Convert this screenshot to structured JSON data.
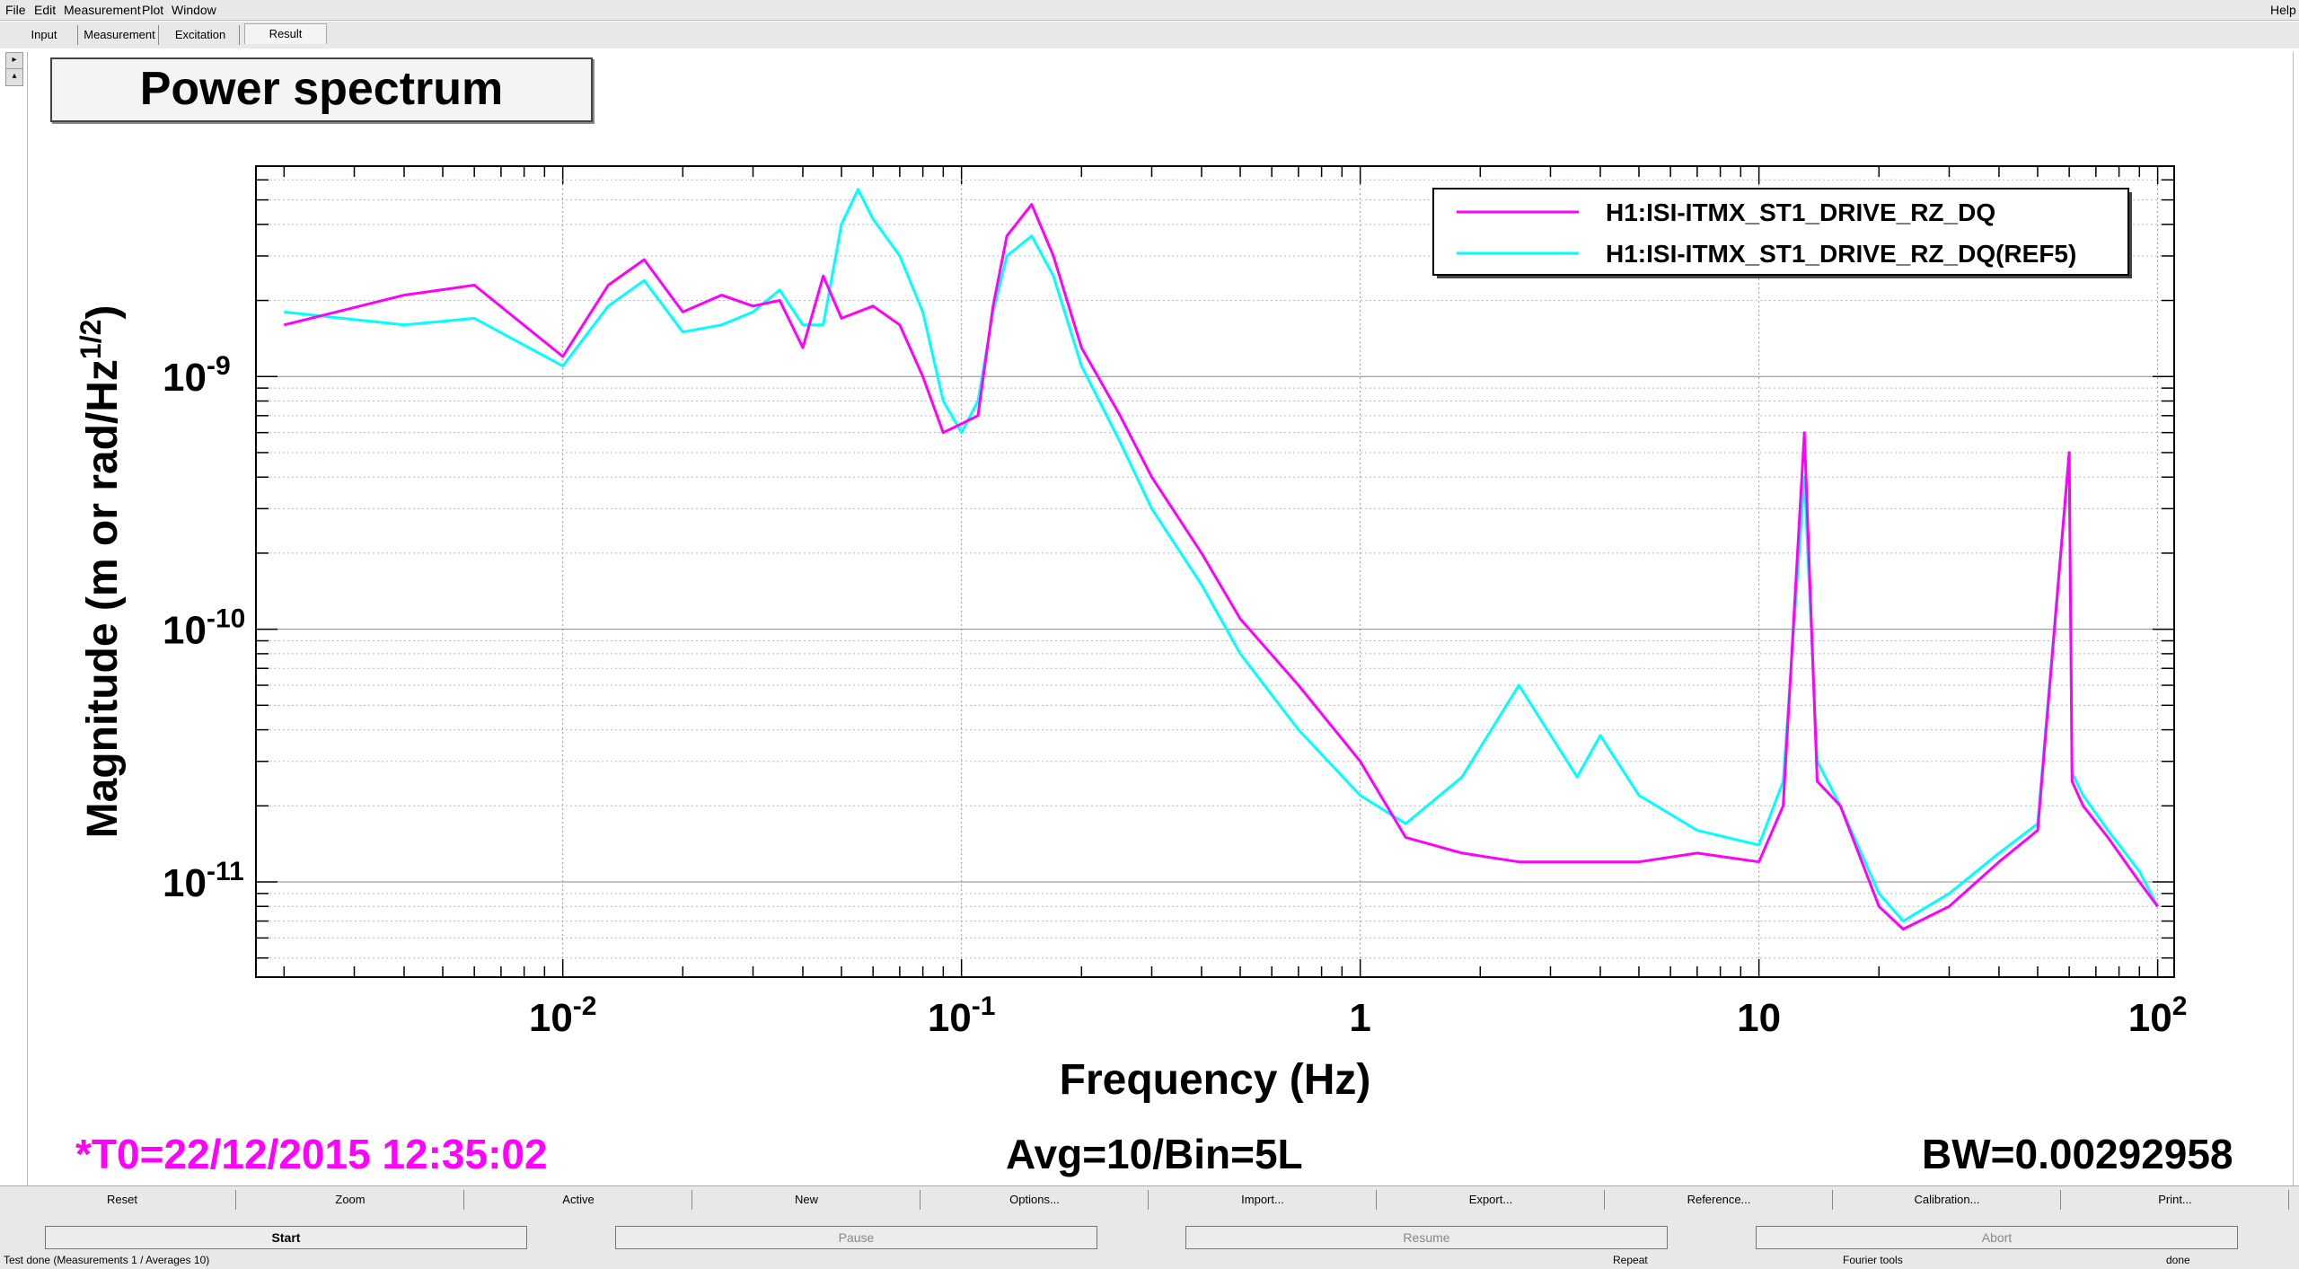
{
  "menu": {
    "items": [
      "File",
      "Edit",
      "Measurement",
      "Plot",
      "Window"
    ],
    "help": "Help"
  },
  "tabs": [
    "Input",
    "Measurement",
    "Excitation",
    "Result"
  ],
  "active_tab": "Result",
  "plot_title": "Power spectrum",
  "stats": {
    "t0": "*T0=22/12/2015 12:35:02",
    "avg": "Avg=10/Bin=5L",
    "bw": "BW=0.00292958"
  },
  "colors": {
    "series1": "#ff00ff",
    "series2": "#00ffff",
    "t0_text": "#ff00ff"
  },
  "chart_data": {
    "type": "line",
    "title": "Power spectrum",
    "xlabel": "Frequency (Hz)",
    "ylabel_main": "Magnitude (m or rad/Hz",
    "ylabel_sup": "1/2",
    "ylabel_close": ")",
    "x_scale": "log",
    "y_scale": "log",
    "xlim": [
      0.0017,
      110
    ],
    "ylim": [
      4.2e-12,
      6.8e-09
    ],
    "x_ticks": [
      {
        "value": 0.01,
        "base": "10",
        "exp": "-2"
      },
      {
        "value": 0.1,
        "base": "10",
        "exp": "-1"
      },
      {
        "value": 1,
        "base": "1",
        "exp": ""
      },
      {
        "value": 10,
        "base": "10",
        "exp": ""
      },
      {
        "value": 100,
        "base": "10",
        "exp": "2"
      }
    ],
    "y_ticks": [
      {
        "value": 1e-11,
        "base": "10",
        "exp": "-11"
      },
      {
        "value": 1e-10,
        "base": "10",
        "exp": "-10"
      },
      {
        "value": 1e-09,
        "base": "10",
        "exp": "-9"
      }
    ],
    "grid": true,
    "legend_position": "top-right",
    "series": [
      {
        "name": "H1:ISI-ITMX_ST1_DRIVE_RZ_DQ",
        "color": "#ff00ff",
        "x": [
          0.002,
          0.004,
          0.006,
          0.01,
          0.013,
          0.016,
          0.02,
          0.025,
          0.03,
          0.035,
          0.04,
          0.045,
          0.05,
          0.06,
          0.07,
          0.08,
          0.09,
          0.1,
          0.11,
          0.12,
          0.13,
          0.15,
          0.17,
          0.2,
          0.25,
          0.3,
          0.4,
          0.5,
          0.7,
          1.0,
          1.3,
          1.8,
          2.5,
          3.5,
          5.0,
          7.0,
          10.0,
          11.5,
          13.0,
          14.0,
          16.0,
          20.0,
          23.0,
          30.0,
          40.0,
          50.0,
          60.0,
          61.0,
          65.0,
          75.0,
          90.0,
          100.0
        ],
        "y": [
          1.6e-09,
          2.1e-09,
          2.3e-09,
          1.2e-09,
          2.3e-09,
          2.9e-09,
          1.8e-09,
          2.1e-09,
          1.9e-09,
          2e-09,
          1.3e-09,
          2.5e-09,
          1.7e-09,
          1.9e-09,
          1.6e-09,
          1e-09,
          6e-10,
          6.5e-10,
          7e-10,
          1.9e-09,
          3.6e-09,
          4.8e-09,
          3e-09,
          1.3e-09,
          7e-10,
          4e-10,
          2e-10,
          1.1e-10,
          6e-11,
          3e-11,
          1.5e-11,
          1.3e-11,
          1.2e-11,
          1.2e-11,
          1.2e-11,
          1.3e-11,
          1.2e-11,
          2e-11,
          6e-10,
          2.5e-11,
          2e-11,
          8e-12,
          6.5e-12,
          8e-12,
          1.2e-11,
          1.6e-11,
          5e-10,
          2.5e-11,
          2e-11,
          1.5e-11,
          1e-11,
          8e-12
        ]
      },
      {
        "name": "H1:ISI-ITMX_ST1_DRIVE_RZ_DQ(REF5)",
        "color": "#00ffff",
        "x": [
          0.002,
          0.004,
          0.006,
          0.01,
          0.013,
          0.016,
          0.02,
          0.025,
          0.03,
          0.035,
          0.04,
          0.045,
          0.05,
          0.055,
          0.06,
          0.07,
          0.08,
          0.09,
          0.1,
          0.11,
          0.12,
          0.13,
          0.15,
          0.17,
          0.2,
          0.25,
          0.3,
          0.4,
          0.5,
          0.7,
          1.0,
          1.3,
          1.8,
          2.5,
          3.5,
          4.0,
          5.0,
          7.0,
          10.0,
          11.5,
          13.0,
          14.0,
          16.0,
          20.0,
          23.0,
          30.0,
          40.0,
          50.0,
          60.0,
          61.0,
          65.0,
          75.0,
          90.0,
          100.0
        ],
        "y": [
          1.8e-09,
          1.6e-09,
          1.7e-09,
          1.1e-09,
          1.9e-09,
          2.4e-09,
          1.5e-09,
          1.6e-09,
          1.8e-09,
          2.2e-09,
          1.6e-09,
          1.6e-09,
          4e-09,
          5.5e-09,
          4.2e-09,
          3e-09,
          1.8e-09,
          8e-10,
          6e-10,
          8e-10,
          1.8e-09,
          3e-09,
          3.6e-09,
          2.5e-09,
          1.1e-09,
          5.5e-10,
          3e-10,
          1.5e-10,
          8e-11,
          4e-11,
          2.2e-11,
          1.7e-11,
          2.6e-11,
          6e-11,
          2.6e-11,
          3.8e-11,
          2.2e-11,
          1.6e-11,
          1.4e-11,
          2.5e-11,
          4e-10,
          3e-11,
          2e-11,
          9e-12,
          7e-12,
          9e-12,
          1.3e-11,
          1.7e-11,
          5e-10,
          2.7e-11,
          2.2e-11,
          1.6e-11,
          1.1e-11,
          8e-12
        ]
      }
    ]
  },
  "buttons_row1": [
    "Reset",
    "Zoom",
    "Active",
    "New",
    "Options...",
    "Import...",
    "Export...",
    "Reference...",
    "Calibration...",
    "Print..."
  ],
  "buttons_row2": [
    "Start",
    "Pause",
    "Resume",
    "Abort"
  ],
  "status": {
    "message": "Test done (Measurements 1 / Averages 10)",
    "mode": "Repeat",
    "tool": "Fourier tools",
    "state": "done"
  }
}
